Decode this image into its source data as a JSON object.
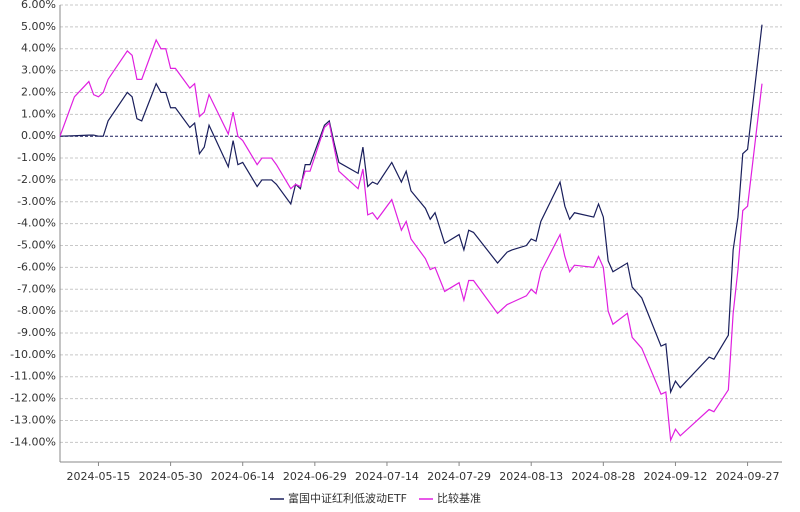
{
  "chart_data": {
    "type": "line",
    "x": [
      "2024-05-07",
      "2024-05-10",
      "2024-05-13",
      "2024-05-14",
      "2024-05-15",
      "2024-05-16",
      "2024-05-17",
      "2024-05-21",
      "2024-05-22",
      "2024-05-23",
      "2024-05-24",
      "2024-05-27",
      "2024-05-28",
      "2024-05-29",
      "2024-05-30",
      "2024-05-31",
      "2024-06-03",
      "2024-06-04",
      "2024-06-05",
      "2024-06-06",
      "2024-06-07",
      "2024-06-11",
      "2024-06-12",
      "2024-06-13",
      "2024-06-14",
      "2024-06-17",
      "2024-06-18",
      "2024-06-20",
      "2024-06-21",
      "2024-06-24",
      "2024-06-25",
      "2024-06-26",
      "2024-06-27",
      "2024-06-28",
      "2024-07-01",
      "2024-07-02",
      "2024-07-03",
      "2024-07-04",
      "2024-07-08",
      "2024-07-09",
      "2024-07-10",
      "2024-07-11",
      "2024-07-12",
      "2024-07-15",
      "2024-07-17",
      "2024-07-18",
      "2024-07-19",
      "2024-07-22",
      "2024-07-23",
      "2024-07-24",
      "2024-07-26",
      "2024-07-29",
      "2024-07-30",
      "2024-07-31",
      "2024-08-01",
      "2024-08-06",
      "2024-08-08",
      "2024-08-09",
      "2024-08-12",
      "2024-08-13",
      "2024-08-14",
      "2024-08-15",
      "2024-08-19",
      "2024-08-20",
      "2024-08-21",
      "2024-08-22",
      "2024-08-26",
      "2024-08-27",
      "2024-08-28",
      "2024-08-29",
      "2024-08-30",
      "2024-09-02",
      "2024-09-03",
      "2024-09-05",
      "2024-09-09",
      "2024-09-10",
      "2024-09-11",
      "2024-09-12",
      "2024-09-13",
      "2024-09-19",
      "2024-09-20",
      "2024-09-23",
      "2024-09-24",
      "2024-09-25",
      "2024-09-26",
      "2024-09-27",
      "2024-09-30"
    ],
    "series": [
      {
        "name": "富国中证红利低波动ETF",
        "color": "#1a1f5c",
        "values": [
          0,
          0.02,
          0.05,
          0.05,
          0,
          0,
          0.7,
          2.0,
          1.8,
          0.8,
          0.7,
          2.4,
          2.0,
          2.0,
          1.3,
          1.3,
          0.4,
          0.6,
          -0.8,
          -0.5,
          0.5,
          -1.4,
          -0.2,
          -1.3,
          -1.2,
          -2.3,
          -2.0,
          -2.0,
          -2.2,
          -3.1,
          -2.2,
          -2.4,
          -1.3,
          -1.3,
          0.5,
          0.7,
          -0.3,
          -1.2,
          -1.7,
          -0.5,
          -2.3,
          -2.1,
          -2.2,
          -1.2,
          -2.1,
          -1.6,
          -2.5,
          -3.3,
          -3.8,
          -3.5,
          -4.9,
          -4.5,
          -5.2,
          -4.3,
          -4.4,
          -5.8,
          -5.3,
          -5.2,
          -5.0,
          -4.7,
          -4.8,
          -3.9,
          -2.1,
          -3.2,
          -3.8,
          -3.5,
          -3.7,
          -3.1,
          -3.7,
          -5.7,
          -6.2,
          -5.8,
          -6.9,
          -7.4,
          -9.6,
          -9.5,
          -11.7,
          -11.2,
          -11.5,
          -10.1,
          -10.2,
          -9.1,
          -5.2,
          -3.7,
          -0.8,
          -0.6,
          5.1
        ]
      },
      {
        "name": "比较基准",
        "color": "#e020e0",
        "values": [
          0,
          1.8,
          2.5,
          1.9,
          1.8,
          2.0,
          2.6,
          3.9,
          3.7,
          2.6,
          2.6,
          4.4,
          4.0,
          4.0,
          3.1,
          3.1,
          2.2,
          2.4,
          0.9,
          1.1,
          1.9,
          0.1,
          1.1,
          0.0,
          -0.2,
          -1.3,
          -1.0,
          -1.0,
          -1.3,
          -2.4,
          -2.2,
          -2.3,
          -1.6,
          -1.6,
          0.4,
          0.6,
          -0.5,
          -1.6,
          -2.4,
          -1.5,
          -3.6,
          -3.5,
          -3.8,
          -2.9,
          -4.3,
          -3.9,
          -4.7,
          -5.6,
          -6.1,
          -6.0,
          -7.1,
          -6.7,
          -7.5,
          -6.6,
          -6.6,
          -8.1,
          -7.7,
          -7.6,
          -7.3,
          -7.0,
          -7.2,
          -6.2,
          -4.5,
          -5.5,
          -6.2,
          -5.9,
          -6.0,
          -5.5,
          -6.0,
          -8.0,
          -8.6,
          -8.1,
          -9.2,
          -9.7,
          -11.8,
          -11.7,
          -13.9,
          -13.4,
          -13.7,
          -12.5,
          -12.6,
          -11.6,
          -8.1,
          -6.1,
          -3.4,
          -3.2,
          2.4
        ]
      }
    ],
    "xlim": [
      "2024-05-07",
      "2024-09-30"
    ],
    "xticks": [
      "2024-05-15",
      "2024-05-30",
      "2024-06-14",
      "2024-06-29",
      "2024-07-14",
      "2024-07-29",
      "2024-08-13",
      "2024-08-28",
      "2024-09-12",
      "2024-09-27"
    ],
    "ylim": [
      -14.9,
      6
    ],
    "yticks": [
      {
        "value": 6,
        "label": "6.00%"
      },
      {
        "value": 5,
        "label": "5.00%"
      },
      {
        "value": 4,
        "label": "4.00%"
      },
      {
        "value": 3,
        "label": "3.00%"
      },
      {
        "value": 2,
        "label": "2.00%"
      },
      {
        "value": 1,
        "label": "1.00%"
      },
      {
        "value": 0,
        "label": "0.00%"
      },
      {
        "value": -1,
        "label": "-1.00%"
      },
      {
        "value": -2,
        "label": "-2.00%"
      },
      {
        "value": -3,
        "label": "-3.00%"
      },
      {
        "value": -4,
        "label": "-4.00%"
      },
      {
        "value": -5,
        "label": "-5.00%"
      },
      {
        "value": -6,
        "label": "-6.00%"
      },
      {
        "value": -7,
        "label": "-7.00%"
      },
      {
        "value": -8,
        "label": "-8.00%"
      },
      {
        "value": -9,
        "label": "-9.00%"
      },
      {
        "value": -10,
        "label": "-10.00%"
      },
      {
        "value": -11,
        "label": "-11.00%"
      },
      {
        "value": -12,
        "label": "-12.00%"
      },
      {
        "value": -13,
        "label": "-13.00%"
      },
      {
        "value": -14,
        "label": "-14.00%"
      }
    ],
    "grid": true,
    "legend": "bottom"
  }
}
